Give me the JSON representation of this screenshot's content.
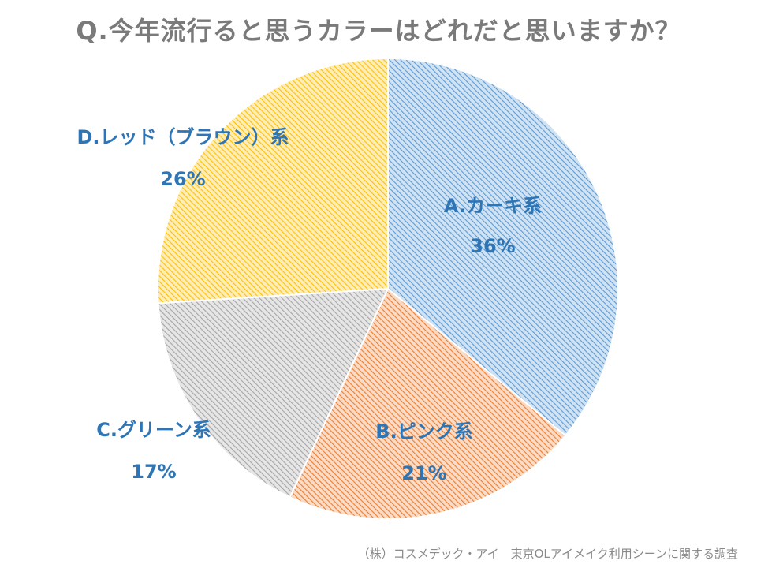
{
  "chart_data": {
    "type": "pie",
    "title": "Q.今年流行ると思うカラーはどれだと思いますか？",
    "categories": [
      "A.カーキ系",
      "B.ピンク系",
      "C.グリーン系",
      "D.レッド（ブラウン）系"
    ],
    "values": [
      36,
      21,
      17,
      26
    ],
    "value_labels": [
      "36%",
      "21%",
      "17%",
      "26%"
    ],
    "colors": [
      "#5b9bd5",
      "#ed7d31",
      "#a5a5a5",
      "#ffc000"
    ],
    "fill_style": "diagonal-hatch",
    "start_angle": "12 o'clock",
    "direction": "clockwise",
    "legend": "none",
    "source": "（株）コスメデック・アイ　東京OLアイメイク利用シーンに関する調査"
  }
}
